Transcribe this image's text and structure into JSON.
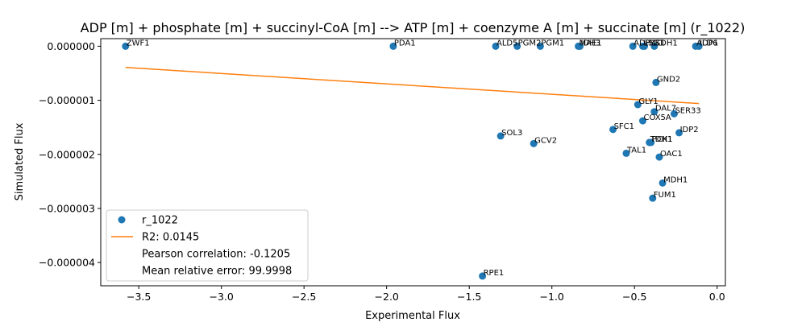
{
  "chart_data": {
    "type": "scatter",
    "title": "ADP [m] + phosphate [m] + succinyl-CoA [m] --> ATP [m] + coenzyme A [m] + succinate [m] (r_1022)",
    "xlabel": "Experimental Flux",
    "ylabel": "Simulated Flux",
    "xlim": [
      -3.73,
      0.05
    ],
    "ylim": [
      -4.43e-06,
      1.4e-07
    ],
    "xticks": [
      -3.5,
      -3.0,
      -2.5,
      -2.0,
      -1.5,
      -1.0,
      -0.5,
      0.0
    ],
    "xtick_labels": [
      "−3.5",
      "−3.0",
      "−2.5",
      "−2.0",
      "−1.5",
      "−1.0",
      "−0.5",
      "0.0"
    ],
    "yticks": [
      0,
      -1e-06,
      -2e-06,
      -3e-06,
      -4e-06
    ],
    "ytick_labels": [
      "0.000000",
      "−0.000001",
      "−0.000002",
      "−0.000003",
      "−0.000004"
    ],
    "grid": false,
    "legend_position": "lower-left",
    "series": [
      {
        "name": "r_1022",
        "color": "#1f77b4",
        "points": [
          {
            "label": "ZWF1",
            "x": -3.58,
            "y": 0
          },
          {
            "label": "PDA1",
            "x": -1.96,
            "y": 0
          },
          {
            "label": "ALD5",
            "x": -1.34,
            "y": 0
          },
          {
            "label": "PGM2",
            "x": -1.21,
            "y": 0
          },
          {
            "label": "PGM1",
            "x": -1.07,
            "y": 0
          },
          {
            "label": "MAE1",
            "x": -0.84,
            "y": 0
          },
          {
            "label": "IDH3",
            "x": -0.83,
            "y": 0
          },
          {
            "label": "ADH1",
            "x": -0.51,
            "y": 0
          },
          {
            "label": "LSC1",
            "x": -0.45,
            "y": 0
          },
          {
            "label": "PYK1",
            "x": -0.44,
            "y": 0
          },
          {
            "label": "SDH1",
            "x": -0.38,
            "y": 0
          },
          {
            "label": "ALD6",
            "x": -0.13,
            "y": 0
          },
          {
            "label": "IDP1",
            "x": -0.11,
            "y": 0
          },
          {
            "label": "GND2",
            "x": -0.37,
            "y": -6.7e-07
          },
          {
            "label": "GLY1",
            "x": -0.48,
            "y": -1.08e-06
          },
          {
            "label": "DAL7",
            "x": -0.38,
            "y": -1.21e-06
          },
          {
            "label": "SER33",
            "x": -0.26,
            "y": -1.25e-06
          },
          {
            "label": "COX5A",
            "x": -0.45,
            "y": -1.38e-06
          },
          {
            "label": "SFC1",
            "x": -0.63,
            "y": -1.54e-06
          },
          {
            "label": "IDP2",
            "x": -0.23,
            "y": -1.6e-06
          },
          {
            "label": "SOL3",
            "x": -1.31,
            "y": -1.66e-06
          },
          {
            "label": "GCV2",
            "x": -1.11,
            "y": -1.8e-06
          },
          {
            "label": "TDH1",
            "x": -0.41,
            "y": -1.78e-06
          },
          {
            "label": "PCK1",
            "x": -0.4,
            "y": -1.78e-06
          },
          {
            "label": "TAL1",
            "x": -0.55,
            "y": -1.98e-06
          },
          {
            "label": "OAC1",
            "x": -0.35,
            "y": -2.05e-06
          },
          {
            "label": "MDH1",
            "x": -0.33,
            "y": -2.53e-06
          },
          {
            "label": "FUM1",
            "x": -0.39,
            "y": -2.81e-06
          },
          {
            "label": "RPE1",
            "x": -1.42,
            "y": -4.25e-06
          }
        ]
      },
      {
        "name": "R2: 0.0145",
        "type": "line",
        "color": "#ff7f0e",
        "x": [
          -3.58,
          -0.11
        ],
        "y": [
          -3.93e-07,
          -1.06e-06
        ]
      }
    ],
    "legend_entries": [
      {
        "text": "r_1022",
        "marker": "dot"
      },
      {
        "text": "R2: 0.0145",
        "marker": "line"
      },
      {
        "text": "Pearson correlation: -0.1205",
        "marker": "none"
      },
      {
        "text": "Mean relative error: 99.9998",
        "marker": "none"
      }
    ]
  }
}
